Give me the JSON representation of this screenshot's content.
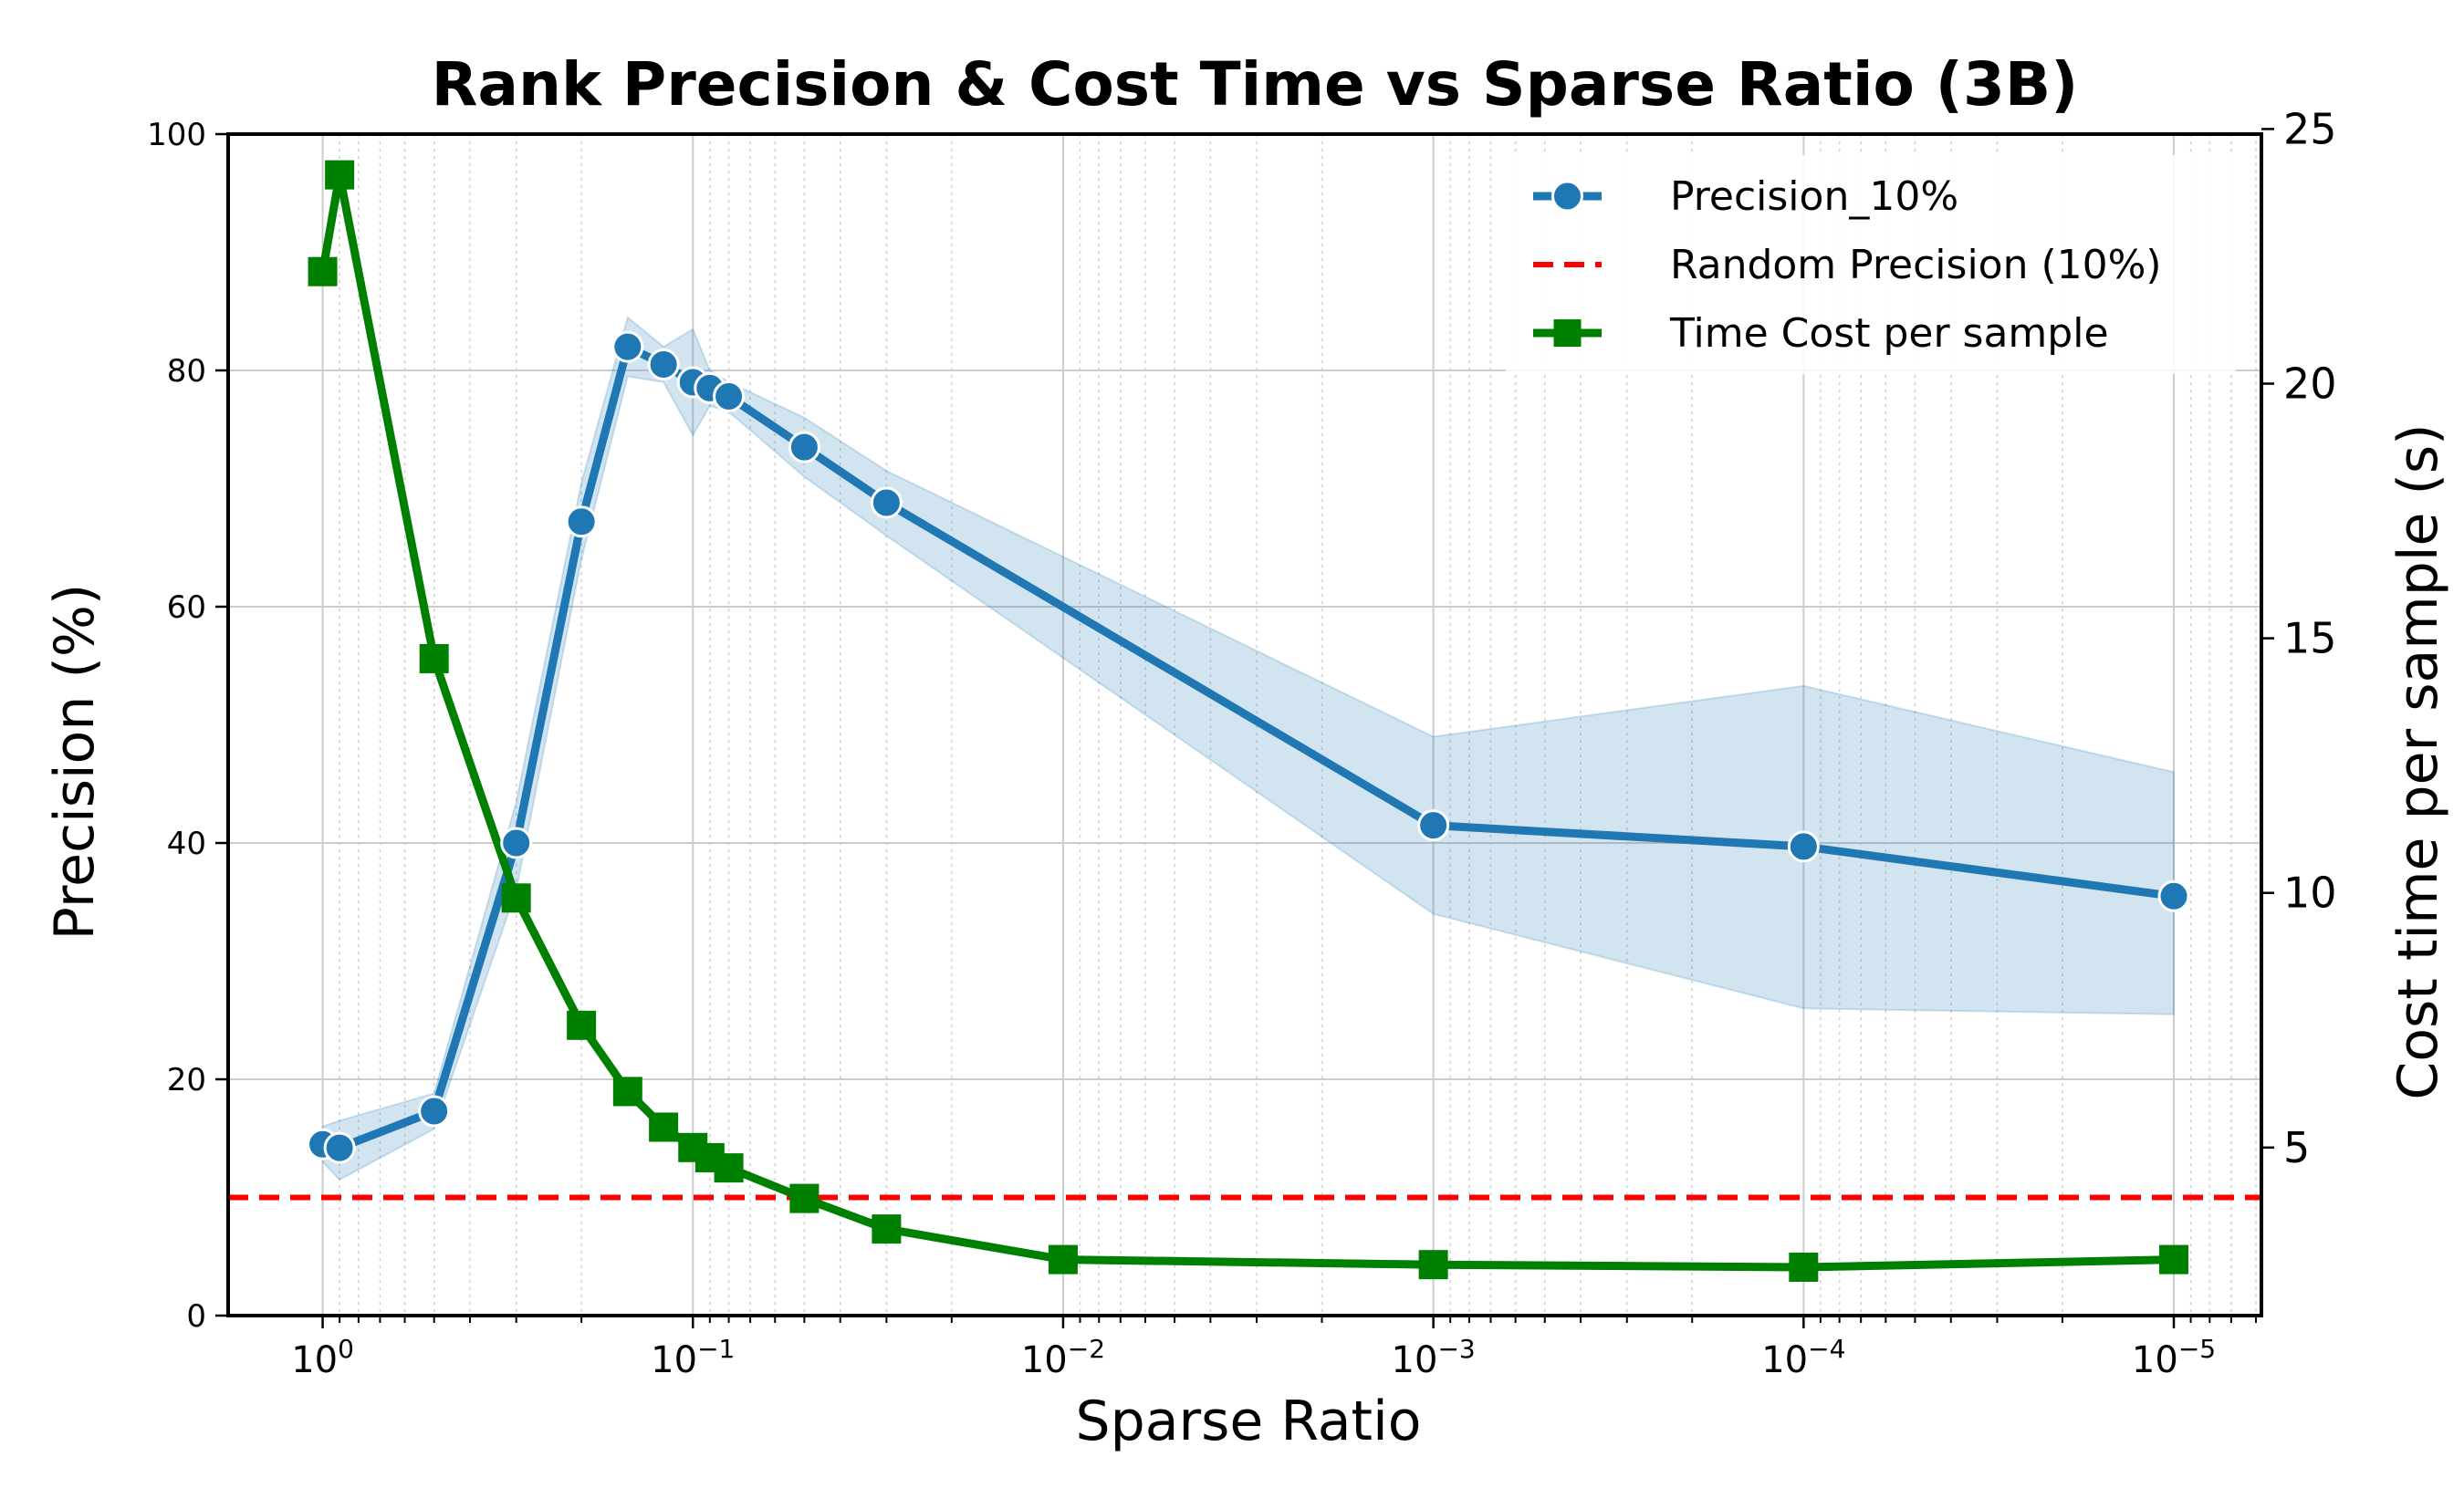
{
  "chart_data": {
    "type": "line",
    "title": "Rank Precision & Cost Time vs Sparse Ratio (3B)",
    "xlabel": "Sparse Ratio",
    "ylabel": "Precision (%)",
    "y2label": "Cost time per sample (s)",
    "xscale": "log-reversed",
    "xlim": [
      1.8,
      5.8e-06
    ],
    "ylim": [
      0,
      100
    ],
    "y2lim": [
      1.7,
      24.9
    ],
    "grid": true,
    "legend_position": "upper-right",
    "x_ticks": [
      {
        "value": 1,
        "base": "10",
        "exp": "0"
      },
      {
        "value": 0.1,
        "base": "10",
        "exp": "−1"
      },
      {
        "value": 0.01,
        "base": "10",
        "exp": "−2"
      },
      {
        "value": 0.001,
        "base": "10",
        "exp": "−3"
      },
      {
        "value": 0.0001,
        "base": "10",
        "exp": "−4"
      },
      {
        "value": 1e-05,
        "base": "10",
        "exp": "−5"
      }
    ],
    "y_ticks": [
      "0",
      "20",
      "40",
      "60",
      "80",
      "100"
    ],
    "y2_ticks": [
      "5",
      "10",
      "15",
      "20",
      "25"
    ],
    "series": [
      {
        "name": "Precision_10%",
        "axis": "left",
        "color": "#1f77b4",
        "marker": "circle",
        "x": [
          1.0,
          0.9,
          0.5,
          0.3,
          0.2,
          0.15,
          0.12,
          0.1,
          0.09,
          0.08,
          0.05,
          0.03,
          0.001,
          0.0001,
          1e-05
        ],
        "y": [
          14.5,
          14.2,
          17.3,
          40.0,
          67.2,
          82.0,
          80.5,
          79.0,
          78.5,
          77.8,
          73.5,
          68.8,
          41.5,
          39.7,
          35.5
        ],
        "ci_lower": [
          13.0,
          11.5,
          15.8,
          36.0,
          64.0,
          79.5,
          79.0,
          74.5,
          77.0,
          76.5,
          71.0,
          66.0,
          34.0,
          26.0,
          25.5
        ],
        "ci_upper": [
          16.0,
          16.5,
          18.8,
          43.5,
          70.5,
          84.5,
          82.0,
          83.5,
          80.0,
          79.0,
          76.0,
          71.5,
          49.0,
          53.3,
          46.0
        ]
      },
      {
        "name": "Random Precision (10%)",
        "axis": "left",
        "color": "#ff0000",
        "style": "dashed",
        "y": 10
      },
      {
        "name": "Time Cost per sample",
        "axis": "right",
        "color": "#008000",
        "marker": "square",
        "x": [
          1.0,
          0.9,
          0.5,
          0.3,
          0.2,
          0.15,
          0.12,
          0.1,
          0.09,
          0.08,
          0.05,
          0.03,
          0.01,
          0.001,
          0.0001,
          1e-05
        ],
        "y": [
          22.2,
          24.1,
          14.6,
          9.9,
          7.4,
          6.1,
          5.4,
          5.0,
          4.8,
          4.6,
          4.0,
          3.4,
          2.8,
          2.7,
          2.65,
          2.8
        ]
      }
    ]
  }
}
